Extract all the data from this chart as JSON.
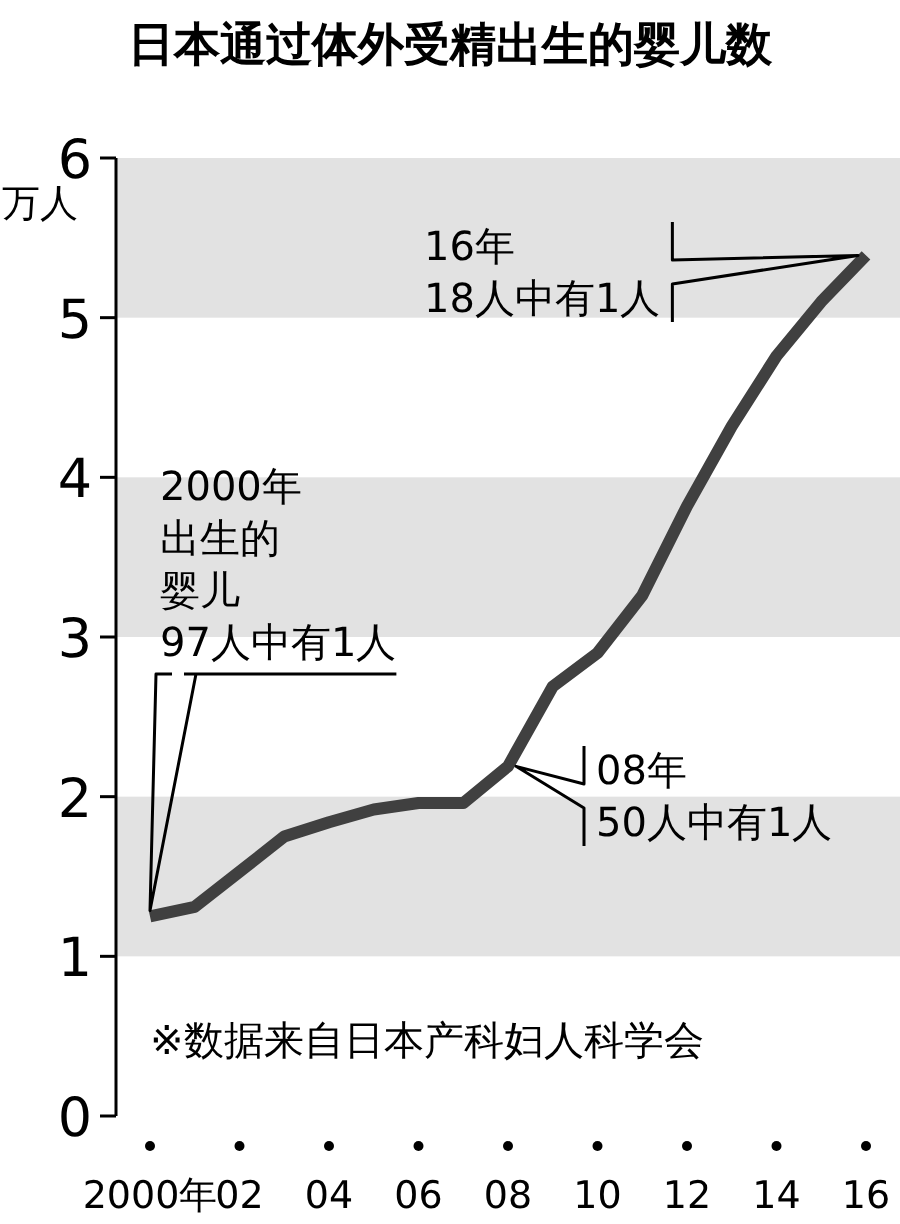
{
  "chart_data": {
    "type": "line",
    "title": "日本通过体外受精出生的婴儿数",
    "ylabel": "万人",
    "x": [
      2000,
      2001,
      2002,
      2003,
      2004,
      2005,
      2006,
      2007,
      2008,
      2009,
      2010,
      2011,
      2012,
      2013,
      2014,
      2015,
      2016
    ],
    "series": [
      {
        "color": "#404040",
        "values": [
          1.25,
          1.31,
          1.53,
          1.75,
          1.84,
          1.92,
          1.96,
          1.96,
          2.19,
          2.69,
          2.9,
          3.26,
          3.82,
          4.32,
          4.76,
          5.1,
          5.39
        ]
      }
    ],
    "xlim": [
      2000,
      2016
    ],
    "xticks": [
      {
        "value": 2000,
        "label": "2000年"
      },
      {
        "value": 2002,
        "label": "02"
      },
      {
        "value": 2004,
        "label": "04"
      },
      {
        "value": 2006,
        "label": "06"
      },
      {
        "value": 2008,
        "label": "08"
      },
      {
        "value": 2010,
        "label": "10"
      },
      {
        "value": 2012,
        "label": "12"
      },
      {
        "value": 2014,
        "label": "14"
      },
      {
        "value": 2016,
        "label": "16"
      }
    ],
    "ylim": [
      0,
      6
    ],
    "yticks": [
      0,
      1,
      2,
      3,
      4,
      5,
      6
    ],
    "bands": [
      {
        "axis": "y",
        "from": 1,
        "to": 2,
        "color": "#e2e2e2"
      },
      {
        "axis": "y",
        "from": 3,
        "to": 4,
        "color": "#e2e2e2"
      },
      {
        "axis": "y",
        "from": 5,
        "to": 6,
        "color": "#e2e2e2"
      }
    ],
    "annotations": [
      "2000年出生的婴儿97人中有1人",
      {
        "text": "08年50人中有1人",
        "x": 2008,
        "y": 2.19
      },
      "16年18人中有1人",
      "※数据来自日本产科妇人科学会"
    ],
    "grid": false,
    "marker": "none",
    "line_style": "solid"
  }
}
